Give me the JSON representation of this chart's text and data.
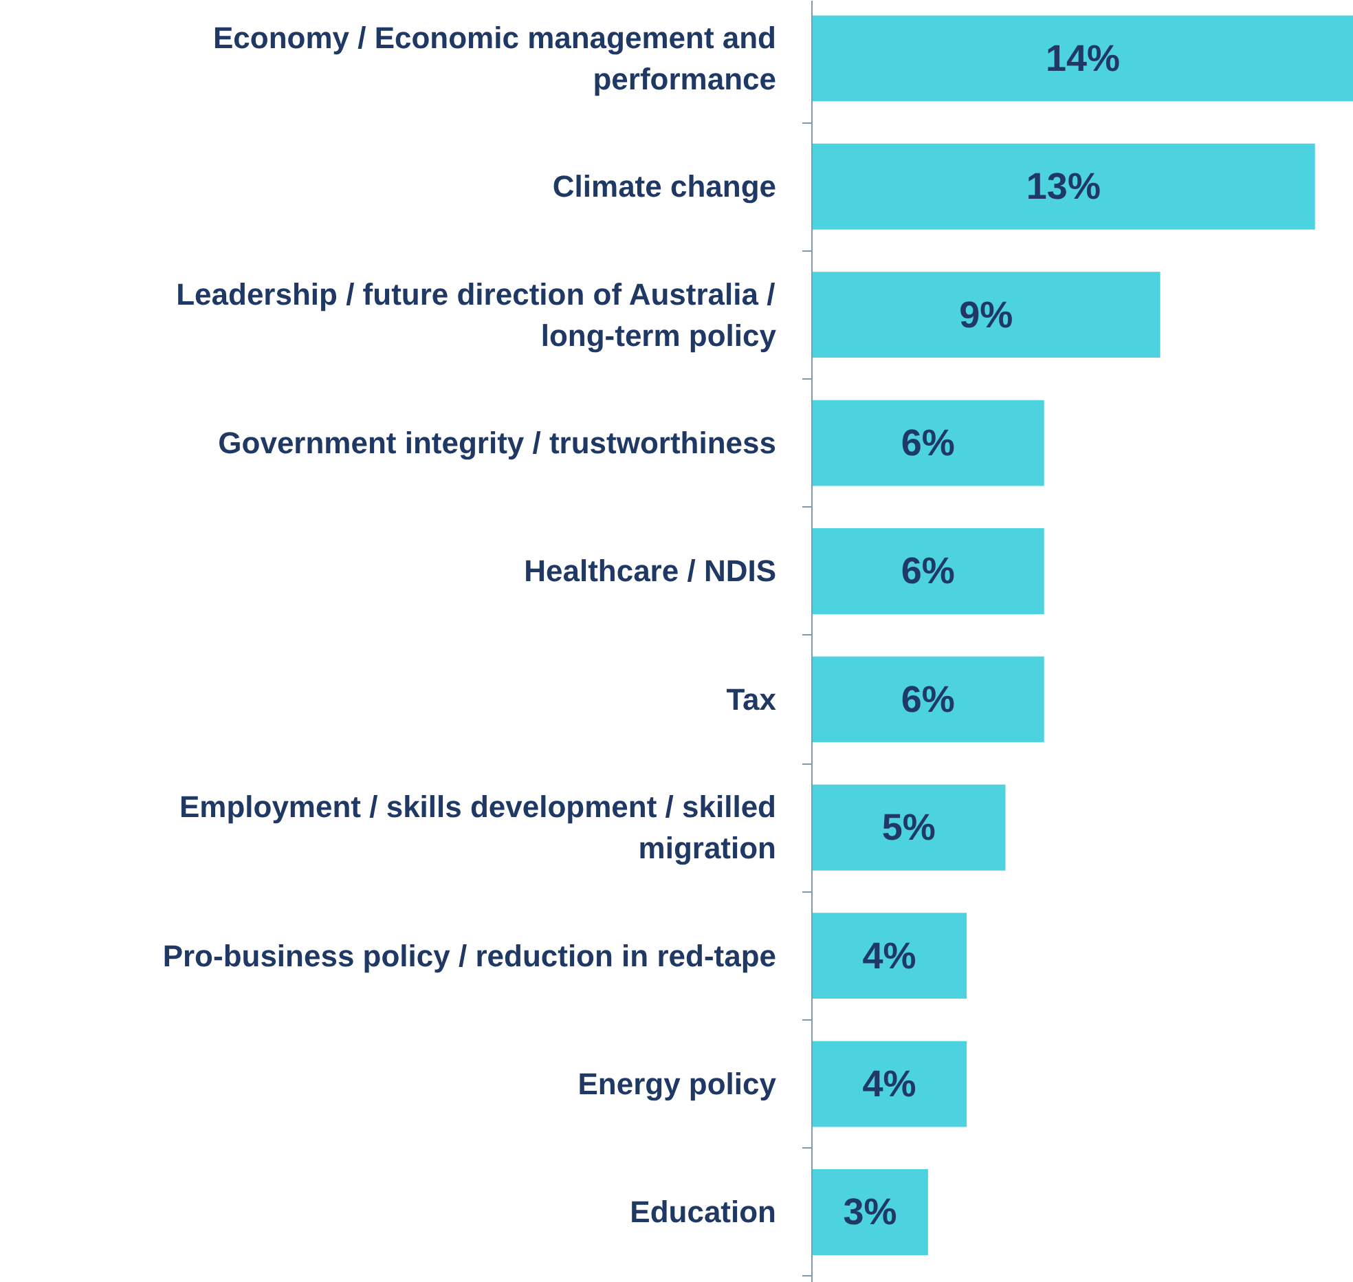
{
  "chart_data": {
    "type": "bar",
    "orientation": "horizontal",
    "color": "#4dd2e0",
    "data_labels": true,
    "categories": [
      "Economy / Economic management and performance",
      "Climate change",
      "Leadership / future direction of Australia / long-term policy",
      "Government integrity / trustworthiness",
      "Healthcare / NDIS",
      "Tax",
      "Employment / skills development / skilled migration",
      "Pro-business policy / reduction in red-tape",
      "Energy policy",
      "Education"
    ],
    "values": [
      14,
      13,
      9,
      6,
      6,
      6,
      5,
      4,
      4,
      3
    ],
    "value_labels": [
      "14%",
      "13%",
      "9%",
      "6%",
      "6%",
      "6%",
      "5%",
      "4%",
      "4%",
      "3%"
    ],
    "grid": false
  }
}
